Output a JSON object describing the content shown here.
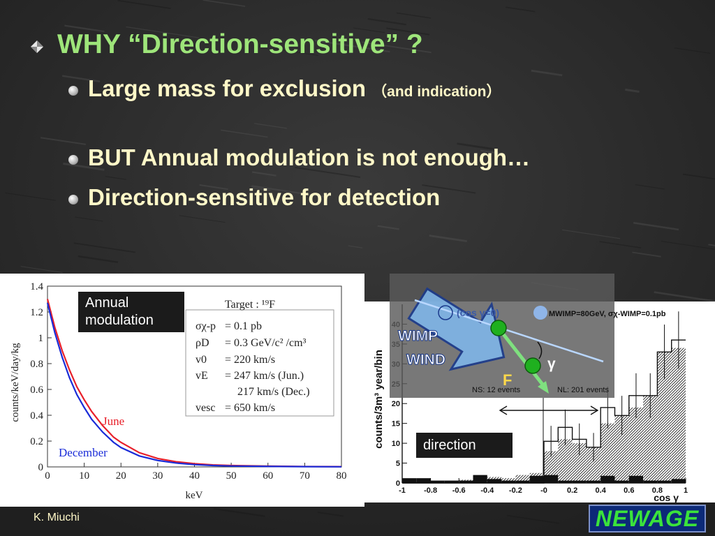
{
  "slide": {
    "title": "WHY “Direction-sensitive” ?",
    "bullets": [
      {
        "main": "Large mass for exclusion",
        "note": "（and indication）"
      },
      {
        "main": "BUT Annual modulation is not enough…",
        "note": ""
      },
      {
        "main": "Direction-sensitive for detection",
        "note": ""
      }
    ],
    "author": "K. Miuchi",
    "logo": "NEWAGE"
  },
  "left_panel": {
    "label": [
      "Annual",
      "modulation"
    ],
    "target": "Target : ¹⁹F",
    "params": [
      {
        "sym": "σχ-p",
        "val": "=  0.1 pb"
      },
      {
        "sym": "ρD",
        "val": "=  0.3 GeV/c² /cm³"
      },
      {
        "sym": "v0",
        "val": "= 220 km/s"
      },
      {
        "sym": "vE",
        "val": "= 247 km/s (Jun.)"
      },
      {
        "sym": "",
        "val": "217 km/s (Dec.)"
      },
      {
        "sym": "vesc",
        "val": "= 650 km/s"
      }
    ]
  },
  "right_panel": {
    "label": "direction",
    "wimp_wind": [
      "WIMP",
      "WIND"
    ],
    "F": "F",
    "gamma": "γ",
    "legend_a": "(cos γ=0)",
    "legend_b": "MWIMP=80GeV, σχ-WIMP=0.1pb",
    "ns": "NS: 12 events",
    "nl": "NL: 201 events"
  },
  "chart_data": [
    {
      "type": "line",
      "xlabel": "keV",
      "ylabel": "counts/keV/day/kg",
      "xlim": [
        0,
        80
      ],
      "ylim": [
        0,
        1.4
      ],
      "xticks": [
        0,
        10,
        20,
        30,
        40,
        50,
        60,
        70,
        80
      ],
      "yticks": [
        0,
        0.2,
        0.4,
        0.6,
        0.8,
        1,
        1.2,
        1.4
      ],
      "x": [
        0,
        2,
        4,
        6,
        8,
        10,
        12,
        15,
        18,
        20,
        25,
        30,
        35,
        40,
        45,
        50,
        60,
        70,
        80
      ],
      "series": [
        {
          "name": "June",
          "color": "#e8202a",
          "values": [
            1.3,
            1.08,
            0.9,
            0.75,
            0.62,
            0.52,
            0.43,
            0.32,
            0.23,
            0.19,
            0.11,
            0.065,
            0.04,
            0.025,
            0.016,
            0.011,
            0.006,
            0.003,
            0.002
          ]
        },
        {
          "name": "December",
          "color": "#1a2cd8",
          "values": [
            1.27,
            1.04,
            0.85,
            0.69,
            0.56,
            0.46,
            0.37,
            0.27,
            0.19,
            0.15,
            0.085,
            0.05,
            0.03,
            0.018,
            0.011,
            0.007,
            0.004,
            0.002,
            0.001
          ]
        }
      ]
    },
    {
      "type": "bar",
      "xlabel": "cos γ",
      "ylabel": "counts/3m³ year/bin",
      "xlim": [
        -1,
        1
      ],
      "ylim": [
        0,
        45
      ],
      "xticks": [
        -1,
        -0.8,
        -0.6,
        -0.4,
        -0.2,
        0,
        0.2,
        0.4,
        0.6,
        0.8,
        1
      ],
      "xtick_labels": [
        "-1",
        "-0.8",
        "-0.6",
        "-0.4",
        "-0.2",
        "-0",
        "0.2",
        "0.4",
        "0.6",
        "0.8",
        "1"
      ],
      "yticks": [
        0,
        5,
        10,
        15,
        20,
        25,
        30,
        35,
        40
      ],
      "bin_edges": [
        -1,
        -0.9,
        -0.8,
        -0.7,
        -0.6,
        -0.5,
        -0.4,
        -0.3,
        -0.2,
        -0.1,
        0,
        0.1,
        0.2,
        0.3,
        0.4,
        0.5,
        0.6,
        0.7,
        0.8,
        0.9,
        1
      ],
      "series": [
        {
          "name": "hatched",
          "values": [
            0,
            0,
            0,
            0.5,
            0.8,
            1.2,
            1.5,
            1.2,
            2,
            2.5,
            8,
            11,
            10,
            9,
            15,
            17,
            19,
            22,
            33,
            34
          ]
        },
        {
          "name": "outline",
          "values": [
            0,
            0,
            0,
            0,
            0,
            0,
            0,
            0,
            0,
            0,
            10.5,
            14,
            11,
            9,
            19,
            17,
            22,
            22,
            33,
            36
          ]
        },
        {
          "name": "solid",
          "values": [
            1.2,
            1.2,
            0.6,
            0.6,
            0.6,
            2,
            1,
            0.6,
            0.6,
            1.8,
            2,
            0.6,
            0.6,
            0.6,
            1.8,
            0.6,
            1.8,
            0.6,
            0.6,
            1
          ]
        }
      ]
    }
  ]
}
